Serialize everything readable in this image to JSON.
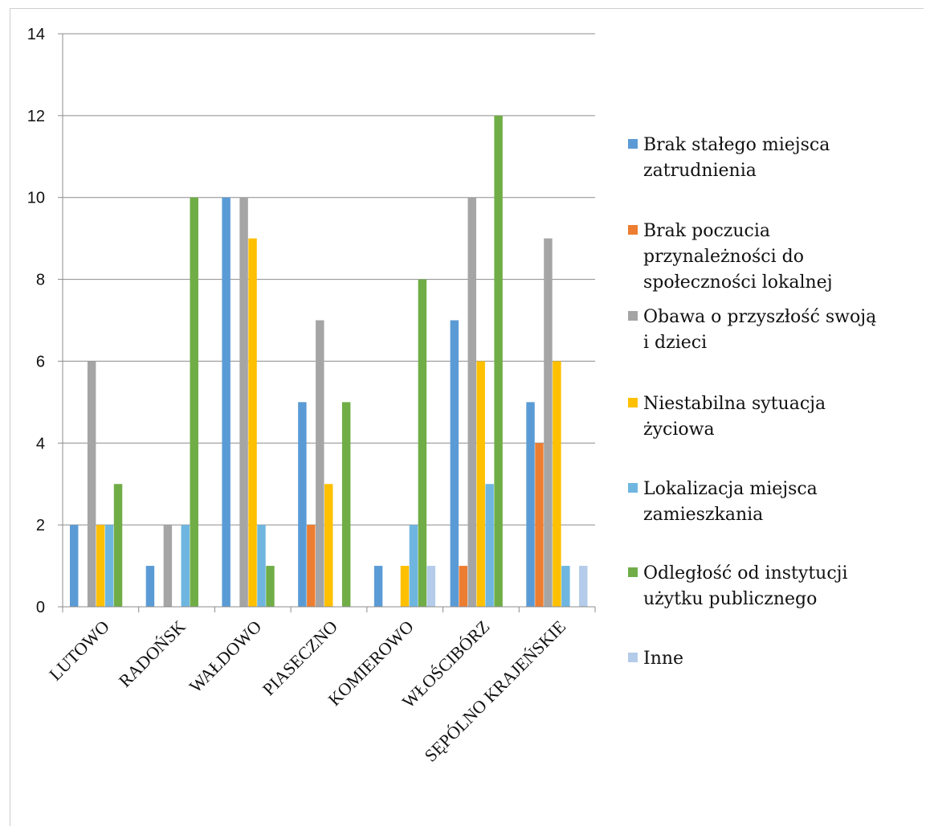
{
  "chart_data": {
    "type": "bar",
    "categories": [
      "LUTOWO",
      "RADOŃSK",
      "WAŁDOWO",
      "PIASECZNO",
      "KOMIEROWO",
      "WŁOŚCIBÓRZ",
      "SĘPÓLNO KRAJEŃSKIE"
    ],
    "series": [
      {
        "name": "Brak stałego miejsca zatrudnienia",
        "legend_lines": [
          "Brak stałego miejsca",
          "zatrudnienia"
        ],
        "color": "#5b9bd5",
        "values": [
          2,
          1,
          10,
          5,
          1,
          7,
          5
        ]
      },
      {
        "name": "Brak poczucia przynależności do społeczności lokalnej",
        "legend_lines": [
          "Brak poczucia",
          "przynależności do",
          "społeczności lokalnej"
        ],
        "color": "#ed7d31",
        "values": [
          0,
          0,
          0,
          2,
          0,
          1,
          4
        ]
      },
      {
        "name": "Obawa o przyszłość swoją i dzieci",
        "legend_lines": [
          "Obawa o przyszłość swoją",
          "i dzieci"
        ],
        "color": "#a5a5a5",
        "values": [
          6,
          2,
          10,
          7,
          0,
          10,
          9
        ]
      },
      {
        "name": "Niestabilna sytuacja życiowa",
        "legend_lines": [
          "Niestabilna sytuacja",
          "życiowa"
        ],
        "color": "#ffc000",
        "values": [
          2,
          0,
          9,
          3,
          1,
          6,
          6
        ]
      },
      {
        "name": "Lokalizacja miejsca zamieszkania",
        "legend_lines": [
          "Lokalizacja miejsca",
          "zamieszkania"
        ],
        "color": "#6eb6e0",
        "values": [
          2,
          2,
          2,
          0,
          2,
          3,
          1
        ]
      },
      {
        "name": "Odległość od instytucji użytku publicznego",
        "legend_lines": [
          "Odległość od instytucji",
          "użytku publicznego"
        ],
        "color": "#70ad47",
        "values": [
          3,
          10,
          1,
          5,
          8,
          12,
          0
        ]
      },
      {
        "name": "Inne",
        "legend_lines": [
          "Inne"
        ],
        "color": "#b4cbe9",
        "values": [
          0,
          0,
          0,
          0,
          1,
          0,
          1
        ]
      }
    ],
    "y_ticks": [
      "0",
      "2",
      "4",
      "6",
      "8",
      "10",
      "12",
      "14"
    ],
    "ylim": [
      0,
      14
    ],
    "grid": true,
    "legend_position": "right"
  }
}
